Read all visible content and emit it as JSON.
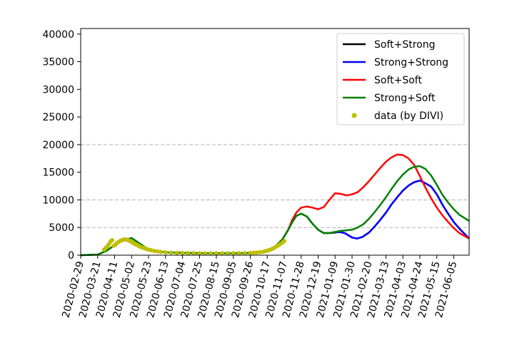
{
  "chart_data": {
    "type": "line",
    "title": "",
    "xlabel": "",
    "ylabel": "",
    "ylim": [
      0,
      41000
    ],
    "yticks": [
      0,
      5000,
      10000,
      15000,
      20000,
      25000,
      30000,
      35000,
      40000
    ],
    "ytick_labels": [
      "0",
      "5000",
      "10000",
      "15000",
      "20000",
      "25000",
      "30000",
      "35000",
      "40000"
    ],
    "xlim": [
      "2020-02-29",
      "2021-06-24"
    ],
    "xticks": [
      "2020-02-29",
      "2020-03-21",
      "2020-04-11",
      "2020-05-02",
      "2020-05-23",
      "2020-06-13",
      "2020-07-04",
      "2020-07-25",
      "2020-08-15",
      "2020-09-05",
      "2020-09-26",
      "2020-10-17",
      "2020-11-07",
      "2020-11-28",
      "2020-12-19",
      "2021-01-09",
      "2021-01-30",
      "2021-02-20",
      "2021-03-13",
      "2021-04-03",
      "2021-04-24",
      "2021-05-15",
      "2021-06-05"
    ],
    "grid": {
      "y_values": [
        5000,
        10000,
        20000
      ],
      "style": "dashed"
    },
    "legend_position": "top-right",
    "series": [
      {
        "name": "Soft+Strong",
        "color": "#000000",
        "x": [
          "2020-02-29",
          "2020-03-21",
          "2020-04-01",
          "2020-04-11",
          "2020-04-22",
          "2020-05-02",
          "2020-05-23",
          "2020-06-13",
          "2020-07-25",
          "2020-09-05",
          "2020-10-04",
          "2020-10-17",
          "2020-10-28",
          "2020-11-05",
          "2020-11-12",
          "2020-11-17",
          "2020-11-22",
          "2020-11-28",
          "2020-12-05",
          "2020-12-12",
          "2020-12-19",
          "2020-12-26",
          "2021-01-02",
          "2021-01-09",
          "2021-01-14",
          "2021-01-21",
          "2021-01-30",
          "2021-02-05",
          "2021-02-12",
          "2021-02-20",
          "2021-02-27",
          "2021-03-06",
          "2021-03-13",
          "2021-03-20",
          "2021-03-27",
          "2021-04-03",
          "2021-04-10",
          "2021-04-17",
          "2021-04-24",
          "2021-05-01",
          "2021-05-08",
          "2021-05-15",
          "2021-05-22",
          "2021-05-29",
          "2021-06-05",
          "2021-06-12",
          "2021-06-24"
        ],
        "y": [
          0,
          100,
          800,
          1800,
          2700,
          3100,
          1000,
          500,
          350,
          350,
          400,
          800,
          1700,
          2900,
          4600,
          6000,
          7100,
          7500,
          7000,
          5700,
          4600,
          4000,
          4000,
          4100,
          4200,
          4000,
          3200,
          3000,
          3300,
          4100,
          5200,
          6400,
          7700,
          9200,
          10500,
          11700,
          12600,
          13200,
          13500,
          13000,
          12400,
          11000,
          9100,
          7500,
          6000,
          4800,
          3000
        ]
      },
      {
        "name": "Strong+Strong",
        "color": "#0000ff",
        "x": [
          "2021-01-09",
          "2021-01-14",
          "2021-01-21",
          "2021-01-30",
          "2021-02-05",
          "2021-02-12",
          "2021-02-20",
          "2021-02-27",
          "2021-03-06",
          "2021-03-13",
          "2021-03-20",
          "2021-03-27",
          "2021-04-03",
          "2021-04-10",
          "2021-04-17",
          "2021-04-24",
          "2021-05-01",
          "2021-05-08",
          "2021-05-15",
          "2021-05-22",
          "2021-05-29",
          "2021-06-05",
          "2021-06-12",
          "2021-06-24"
        ],
        "y": [
          4100,
          4200,
          4000,
          3200,
          3000,
          3300,
          4100,
          5200,
          6400,
          7700,
          9200,
          10500,
          11700,
          12600,
          13200,
          13500,
          13000,
          12400,
          11000,
          9100,
          7500,
          6000,
          4800,
          3000
        ]
      },
      {
        "name": "Soft+Soft",
        "color": "#ff0000",
        "x": [
          "2020-11-05",
          "2020-11-12",
          "2020-11-17",
          "2020-11-22",
          "2020-11-28",
          "2020-12-05",
          "2020-12-12",
          "2020-12-19",
          "2020-12-26",
          "2021-01-02",
          "2021-01-09",
          "2021-01-16",
          "2021-01-23",
          "2021-01-30",
          "2021-02-06",
          "2021-02-13",
          "2021-02-20",
          "2021-02-27",
          "2021-03-06",
          "2021-03-13",
          "2021-03-20",
          "2021-03-27",
          "2021-04-03",
          "2021-04-10",
          "2021-04-17",
          "2021-04-24",
          "2021-05-01",
          "2021-05-08",
          "2021-05-15",
          "2021-05-22",
          "2021-05-29",
          "2021-06-05",
          "2021-06-12",
          "2021-06-24"
        ],
        "y": [
          2900,
          4600,
          6400,
          7700,
          8600,
          8800,
          8600,
          8300,
          8700,
          10000,
          11200,
          11100,
          10800,
          11000,
          11400,
          12300,
          13400,
          14600,
          15800,
          16900,
          17700,
          18200,
          18100,
          17500,
          16300,
          14300,
          12200,
          10300,
          8600,
          7200,
          6000,
          4900,
          4000,
          3000
        ]
      },
      {
        "name": "Strong+Soft",
        "color": "#008000",
        "x": [
          "2020-02-29",
          "2020-03-21",
          "2020-04-01",
          "2020-04-11",
          "2020-04-22",
          "2020-05-02",
          "2020-05-23",
          "2020-06-13",
          "2020-07-25",
          "2020-09-05",
          "2020-10-04",
          "2020-10-17",
          "2020-10-28",
          "2020-11-05",
          "2020-11-12",
          "2020-11-17",
          "2020-11-22",
          "2020-11-28",
          "2020-12-05",
          "2020-12-12",
          "2020-12-19",
          "2020-12-26",
          "2021-01-02",
          "2021-01-09",
          "2021-01-16",
          "2021-01-23",
          "2021-01-30",
          "2021-02-06",
          "2021-02-13",
          "2021-02-20",
          "2021-02-27",
          "2021-03-06",
          "2021-03-13",
          "2021-03-20",
          "2021-03-27",
          "2021-04-03",
          "2021-04-10",
          "2021-04-17",
          "2021-04-24",
          "2021-05-01",
          "2021-05-08",
          "2021-05-15",
          "2021-05-22",
          "2021-05-29",
          "2021-06-05",
          "2021-06-12",
          "2021-06-24"
        ],
        "y": [
          0,
          100,
          800,
          1800,
          2700,
          3100,
          1000,
          500,
          350,
          350,
          400,
          800,
          1700,
          2900,
          4600,
          6000,
          7100,
          7500,
          7000,
          5700,
          4600,
          4000,
          4000,
          4200,
          4400,
          4500,
          4600,
          5000,
          5600,
          6600,
          7800,
          9100,
          10500,
          12000,
          13400,
          14600,
          15500,
          16000,
          16100,
          15600,
          14400,
          12700,
          10900,
          9500,
          8300,
          7300,
          6200
        ]
      },
      {
        "name": "data (by DIVI)",
        "color": "#bfbf00",
        "marker": "dot",
        "x": [
          "2020-03-29",
          "2020-03-31",
          "2020-04-02",
          "2020-04-04",
          "2020-04-06",
          "2020-04-08",
          "2020-04-10",
          "2020-04-12",
          "2020-04-14",
          "2020-04-16",
          "2020-04-18",
          "2020-04-20",
          "2020-04-22",
          "2020-04-24",
          "2020-04-26",
          "2020-04-28",
          "2020-04-30",
          "2020-05-02",
          "2020-05-04",
          "2020-05-06",
          "2020-05-08",
          "2020-05-10",
          "2020-05-12",
          "2020-05-14",
          "2020-05-17",
          "2020-05-20",
          "2020-05-23",
          "2020-05-26",
          "2020-05-30",
          "2020-06-03",
          "2020-06-07",
          "2020-06-13",
          "2020-06-20",
          "2020-06-27",
          "2020-07-04",
          "2020-07-11",
          "2020-07-18",
          "2020-07-25",
          "2020-08-01",
          "2020-08-08",
          "2020-08-15",
          "2020-08-22",
          "2020-08-29",
          "2020-09-05",
          "2020-09-12",
          "2020-09-19",
          "2020-09-26",
          "2020-09-30",
          "2020-10-04",
          "2020-10-08",
          "2020-10-12",
          "2020-10-15",
          "2020-10-18",
          "2020-10-21",
          "2020-10-24",
          "2020-10-27",
          "2020-10-30",
          "2020-11-02",
          "2020-11-05",
          "2020-11-07"
        ],
        "y": [
          1000,
          1300,
          1600,
          2000,
          2500,
          2700,
          1700,
          1900,
          2200,
          2400,
          2600,
          2700,
          2800,
          2850,
          2800,
          2700,
          2550,
          2400,
          2200,
          2050,
          1900,
          1750,
          1600,
          1450,
          1300,
          1150,
          1000,
          900,
          780,
          680,
          600,
          520,
          460,
          420,
          390,
          370,
          360,
          350,
          340,
          340,
          340,
          340,
          345,
          350,
          360,
          370,
          400,
          430,
          480,
          540,
          620,
          720,
          850,
          1000,
          1200,
          1450,
          1700,
          2000,
          2300,
          2550
        ]
      }
    ]
  }
}
